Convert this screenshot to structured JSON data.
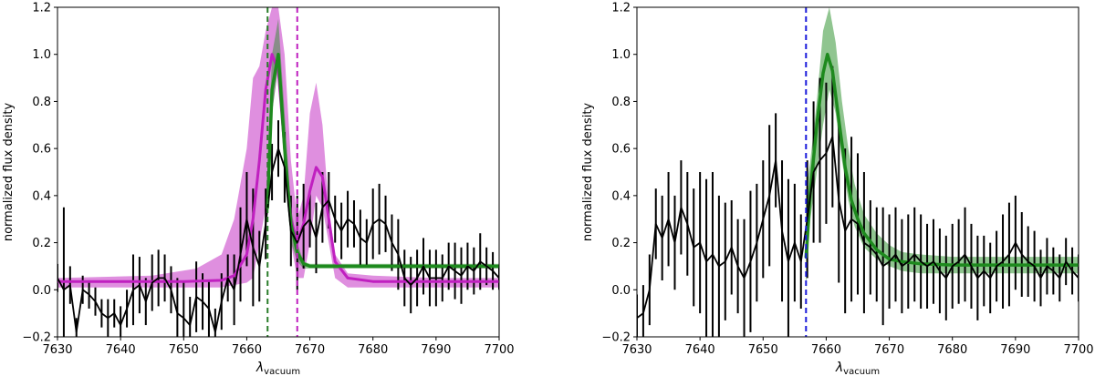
{
  "chart_data": [
    {
      "type": "line",
      "title": "",
      "xlabel": "λ",
      "xlabel_sub": "vacuum",
      "ylabel": "normalized flux density",
      "xlim": [
        7630,
        7700
      ],
      "ylim": [
        -0.2,
        1.2
      ],
      "xticks": [
        7630,
        7640,
        7650,
        7660,
        7670,
        7680,
        7690,
        7700
      ],
      "xtick_labels": [
        "7630",
        "7640",
        "7650",
        "7660",
        "7670",
        "7680",
        "7690",
        "7700"
      ],
      "yticks": [
        -0.2,
        0.0,
        0.2,
        0.4,
        0.6,
        0.8,
        1.0,
        1.2
      ],
      "ytick_labels": [
        "−0.2",
        "0.0",
        "0.2",
        "0.4",
        "0.6",
        "0.8",
        "1.0",
        "1.2"
      ],
      "grid": false,
      "vlines": [
        {
          "x": 7663.3,
          "color": "#2a7d2a",
          "style": "dashed"
        },
        {
          "x": 7668.0,
          "color": "#c020c0",
          "style": "dashed"
        }
      ],
      "bands": [
        {
          "color": "#c020c0",
          "opacity": 0.5,
          "x": [
            7630,
            7645,
            7652,
            7656,
            7658,
            7660,
            7661,
            7662,
            7663,
            7664,
            7665,
            7666,
            7667,
            7668,
            7669,
            7670,
            7671,
            7672,
            7673,
            7674,
            7676,
            7680,
            7690,
            7700
          ],
          "lower": [
            0.01,
            0.01,
            0.01,
            0.01,
            0.02,
            0.03,
            0.05,
            0.2,
            0.35,
            0.75,
            0.95,
            0.6,
            0.2,
            0.05,
            0.05,
            0.2,
            0.4,
            0.35,
            0.2,
            0.05,
            0.01,
            0.01,
            0.01,
            0.01
          ],
          "upper": [
            0.05,
            0.06,
            0.09,
            0.15,
            0.3,
            0.6,
            0.9,
            0.95,
            1.1,
            1.2,
            1.2,
            1.0,
            0.55,
            0.3,
            0.4,
            0.75,
            0.88,
            0.7,
            0.35,
            0.15,
            0.07,
            0.06,
            0.05,
            0.05
          ]
        },
        {
          "color": "#228b22",
          "opacity": 0.45,
          "x": [
            7663.0,
            7664.0,
            7665.0,
            7666.0,
            7667.0,
            7668.0,
            7669.0,
            7670.0,
            7700
          ],
          "lower": [
            0.2,
            0.75,
            0.95,
            0.55,
            0.2,
            0.12,
            0.09,
            0.09,
            0.09
          ],
          "upper": [
            0.3,
            1.0,
            1.15,
            0.75,
            0.35,
            0.2,
            0.12,
            0.11,
            0.11
          ]
        }
      ],
      "series": [
        {
          "color": "#c020c0",
          "width": 3,
          "x": [
            7630,
            7650,
            7656,
            7658,
            7660,
            7661,
            7662,
            7663,
            7664,
            7665,
            7666,
            7667,
            7668,
            7669,
            7670,
            7671,
            7672,
            7673,
            7674,
            7676,
            7680,
            7700
          ],
          "y": [
            0.035,
            0.035,
            0.04,
            0.06,
            0.15,
            0.3,
            0.55,
            0.85,
            1.0,
            0.93,
            0.6,
            0.3,
            0.2,
            0.28,
            0.42,
            0.52,
            0.48,
            0.3,
            0.12,
            0.05,
            0.035,
            0.035
          ]
        },
        {
          "color": "#1e8a1e",
          "width": 3.5,
          "x": [
            7663.3,
            7664.0,
            7665.0,
            7666.0,
            7667.0,
            7668.0,
            7669.0,
            7670.0,
            7672.0,
            7700
          ],
          "y": [
            0.35,
            0.85,
            1.0,
            0.6,
            0.28,
            0.16,
            0.11,
            0.1,
            0.1,
            0.1
          ]
        },
        {
          "color": "#000000",
          "width": 1.8,
          "x": [
            7630,
            7631,
            7632,
            7633,
            7634,
            7635,
            7636,
            7637,
            7638,
            7639,
            7640,
            7641,
            7642,
            7643,
            7644,
            7645,
            7646,
            7647,
            7648,
            7649,
            7650,
            7651,
            7652,
            7653,
            7654,
            7655,
            7656,
            7657,
            7658,
            7659,
            7660,
            7661,
            7662,
            7663,
            7664,
            7665,
            7666,
            7667,
            7668,
            7669,
            7670,
            7671,
            7672,
            7673,
            7674,
            7675,
            7676,
            7677,
            7678,
            7679,
            7680,
            7681,
            7682,
            7683,
            7684,
            7685,
            7686,
            7687,
            7688,
            7689,
            7690,
            7691,
            7692,
            7693,
            7694,
            7695,
            7696,
            7697,
            7698,
            7699,
            7700
          ],
          "y": [
            0.05,
            0.0,
            0.02,
            -0.18,
            0.0,
            -0.02,
            -0.05,
            -0.1,
            -0.12,
            -0.1,
            -0.15,
            -0.08,
            0.0,
            0.02,
            -0.05,
            0.03,
            0.05,
            0.05,
            0.0,
            -0.1,
            -0.12,
            -0.15,
            -0.03,
            -0.05,
            -0.08,
            -0.18,
            -0.05,
            0.05,
            0.0,
            0.15,
            0.3,
            0.18,
            0.1,
            0.28,
            0.5,
            0.6,
            0.52,
            0.25,
            0.2,
            0.27,
            0.3,
            0.22,
            0.35,
            0.38,
            0.3,
            0.25,
            0.3,
            0.28,
            0.22,
            0.2,
            0.28,
            0.3,
            0.28,
            0.2,
            0.15,
            0.05,
            0.02,
            0.05,
            0.1,
            0.05,
            0.05,
            0.05,
            0.1,
            0.08,
            0.06,
            0.1,
            0.08,
            0.12,
            0.1,
            0.08,
            0.05
          ]
        }
      ],
      "errorbars": {
        "color": "#000000",
        "x": [
          7630,
          7631,
          7632,
          7633,
          7634,
          7635,
          7636,
          7637,
          7638,
          7639,
          7640,
          7641,
          7642,
          7643,
          7644,
          7645,
          7646,
          7647,
          7648,
          7649,
          7650,
          7651,
          7652,
          7653,
          7654,
          7655,
          7656,
          7657,
          7658,
          7659,
          7660,
          7661,
          7662,
          7663,
          7664,
          7665,
          7666,
          7667,
          7668,
          7669,
          7670,
          7671,
          7672,
          7673,
          7674,
          7675,
          7676,
          7677,
          7678,
          7679,
          7680,
          7681,
          7682,
          7683,
          7684,
          7685,
          7686,
          7687,
          7688,
          7689,
          7690,
          7691,
          7692,
          7693,
          7694,
          7695,
          7696,
          7697,
          7698,
          7699,
          7700
        ],
        "err": [
          0.06,
          0.35,
          0.08,
          0.06,
          0.06,
          0.06,
          0.06,
          0.06,
          0.08,
          0.06,
          0.08,
          0.08,
          0.15,
          0.12,
          0.1,
          0.12,
          0.12,
          0.1,
          0.1,
          0.15,
          0.15,
          0.12,
          0.15,
          0.12,
          0.12,
          0.1,
          0.12,
          0.1,
          0.15,
          0.2,
          0.2,
          0.25,
          0.15,
          0.15,
          0.12,
          0.12,
          0.15,
          0.15,
          0.2,
          0.18,
          0.12,
          0.15,
          0.15,
          0.12,
          0.1,
          0.12,
          0.12,
          0.1,
          0.12,
          0.1,
          0.15,
          0.15,
          0.12,
          0.12,
          0.15,
          0.12,
          0.12,
          0.12,
          0.12,
          0.12,
          0.12,
          0.1,
          0.1,
          0.12,
          0.12,
          0.1,
          0.1,
          0.12,
          0.08,
          0.08,
          0.05
        ]
      }
    },
    {
      "type": "line",
      "title": "",
      "xlabel": "λ",
      "xlabel_sub": "vacuum",
      "ylabel": "normalized flux density",
      "xlim": [
        7630,
        7700
      ],
      "ylim": [
        -0.2,
        1.2
      ],
      "xticks": [
        7630,
        7640,
        7650,
        7660,
        7670,
        7680,
        7690,
        7700
      ],
      "xtick_labels": [
        "7630",
        "7640",
        "7650",
        "7660",
        "7670",
        "7680",
        "7690",
        "7700"
      ],
      "yticks": [
        -0.2,
        0.0,
        0.2,
        0.4,
        0.6,
        0.8,
        1.0,
        1.2
      ],
      "ytick_labels": [
        "−0.2",
        "0.0",
        "0.2",
        "0.4",
        "0.6",
        "0.8",
        "1.0",
        "1.2"
      ],
      "grid": false,
      "vlines": [
        {
          "x": 7656.8,
          "color": "#1a1adb",
          "style": "dashed"
        }
      ],
      "bands": [
        {
          "color": "#228b22",
          "opacity": 0.5,
          "x": [
            7656.8,
            7657.5,
            7658.5,
            7659.5,
            7660.5,
            7661.5,
            7662.5,
            7663.5,
            7664.5,
            7666,
            7668,
            7670,
            7672,
            7675,
            7680,
            7690,
            7700
          ],
          "lower": [
            0.0,
            0.3,
            0.5,
            0.7,
            0.85,
            0.75,
            0.55,
            0.38,
            0.27,
            0.18,
            0.13,
            0.1,
            0.08,
            0.07,
            0.07,
            0.07,
            0.07
          ],
          "upper": [
            0.42,
            0.55,
            0.8,
            1.1,
            1.2,
            1.05,
            0.8,
            0.6,
            0.45,
            0.32,
            0.24,
            0.19,
            0.16,
            0.15,
            0.14,
            0.14,
            0.14
          ]
        }
      ],
      "series": [
        {
          "color": "#1e8a1e",
          "width": 3.5,
          "x": [
            7656.8,
            7657.5,
            7658.5,
            7659.5,
            7660.2,
            7661,
            7662,
            7663,
            7664,
            7665,
            7666,
            7668,
            7670,
            7672,
            7675,
            7680,
            7700
          ],
          "y": [
            0.14,
            0.42,
            0.7,
            0.92,
            1.0,
            0.93,
            0.72,
            0.52,
            0.38,
            0.3,
            0.24,
            0.17,
            0.13,
            0.12,
            0.11,
            0.105,
            0.105
          ]
        },
        {
          "color": "#000000",
          "width": 1.8,
          "x": [
            7630,
            7631,
            7632,
            7633,
            7634,
            7635,
            7636,
            7637,
            7638,
            7639,
            7640,
            7641,
            7642,
            7643,
            7644,
            7645,
            7646,
            7647,
            7648,
            7649,
            7650,
            7651,
            7652,
            7653,
            7654,
            7655,
            7656,
            7657,
            7658,
            7659,
            7660,
            7661,
            7662,
            7663,
            7664,
            7665,
            7666,
            7667,
            7668,
            7669,
            7670,
            7671,
            7672,
            7673,
            7674,
            7675,
            7676,
            7677,
            7678,
            7679,
            7680,
            7681,
            7682,
            7683,
            7684,
            7685,
            7686,
            7687,
            7688,
            7689,
            7690,
            7691,
            7692,
            7693,
            7694,
            7695,
            7696,
            7697,
            7698,
            7699,
            7700
          ],
          "y": [
            -0.12,
            -0.1,
            0.0,
            0.28,
            0.22,
            0.3,
            0.2,
            0.35,
            0.28,
            0.18,
            0.2,
            0.12,
            0.15,
            0.1,
            0.12,
            0.18,
            0.1,
            0.05,
            0.12,
            0.2,
            0.3,
            0.4,
            0.55,
            0.25,
            0.12,
            0.2,
            0.12,
            0.3,
            0.5,
            0.55,
            0.58,
            0.65,
            0.38,
            0.25,
            0.3,
            0.28,
            0.2,
            0.18,
            0.15,
            0.1,
            0.12,
            0.15,
            0.1,
            0.12,
            0.15,
            0.12,
            0.1,
            0.12,
            0.08,
            0.05,
            0.1,
            0.12,
            0.15,
            0.1,
            0.05,
            0.08,
            0.05,
            0.1,
            0.12,
            0.15,
            0.2,
            0.15,
            0.12,
            0.1,
            0.05,
            0.1,
            0.08,
            0.05,
            0.12,
            0.08,
            0.05
          ]
        }
      ],
      "errorbars": {
        "color": "#000000",
        "x": [
          7630,
          7631,
          7632,
          7633,
          7634,
          7635,
          7636,
          7637,
          7638,
          7639,
          7640,
          7641,
          7642,
          7643,
          7644,
          7645,
          7646,
          7647,
          7648,
          7649,
          7650,
          7651,
          7652,
          7653,
          7654,
          7655,
          7656,
          7657,
          7658,
          7659,
          7660,
          7661,
          7662,
          7663,
          7664,
          7665,
          7666,
          7667,
          7668,
          7669,
          7670,
          7671,
          7672,
          7673,
          7674,
          7675,
          7676,
          7677,
          7678,
          7679,
          7680,
          7681,
          7682,
          7683,
          7684,
          7685,
          7686,
          7687,
          7688,
          7689,
          7690,
          7691,
          7692,
          7693,
          7694,
          7695,
          7696,
          7697,
          7698,
          7699,
          7700
        ],
        "err": [
          0.1,
          0.12,
          0.15,
          0.15,
          0.18,
          0.2,
          0.2,
          0.2,
          0.22,
          0.25,
          0.3,
          0.35,
          0.35,
          0.3,
          0.25,
          0.2,
          0.2,
          0.25,
          0.3,
          0.25,
          0.25,
          0.3,
          0.2,
          0.3,
          0.35,
          0.25,
          0.2,
          0.25,
          0.3,
          0.35,
          0.3,
          0.3,
          0.35,
          0.35,
          0.35,
          0.3,
          0.3,
          0.2,
          0.2,
          0.25,
          0.2,
          0.2,
          0.2,
          0.2,
          0.2,
          0.2,
          0.18,
          0.18,
          0.18,
          0.18,
          0.18,
          0.18,
          0.2,
          0.18,
          0.18,
          0.15,
          0.15,
          0.15,
          0.2,
          0.22,
          0.2,
          0.18,
          0.15,
          0.15,
          0.12,
          0.12,
          0.1,
          0.1,
          0.1,
          0.1,
          0.1
        ]
      }
    }
  ]
}
